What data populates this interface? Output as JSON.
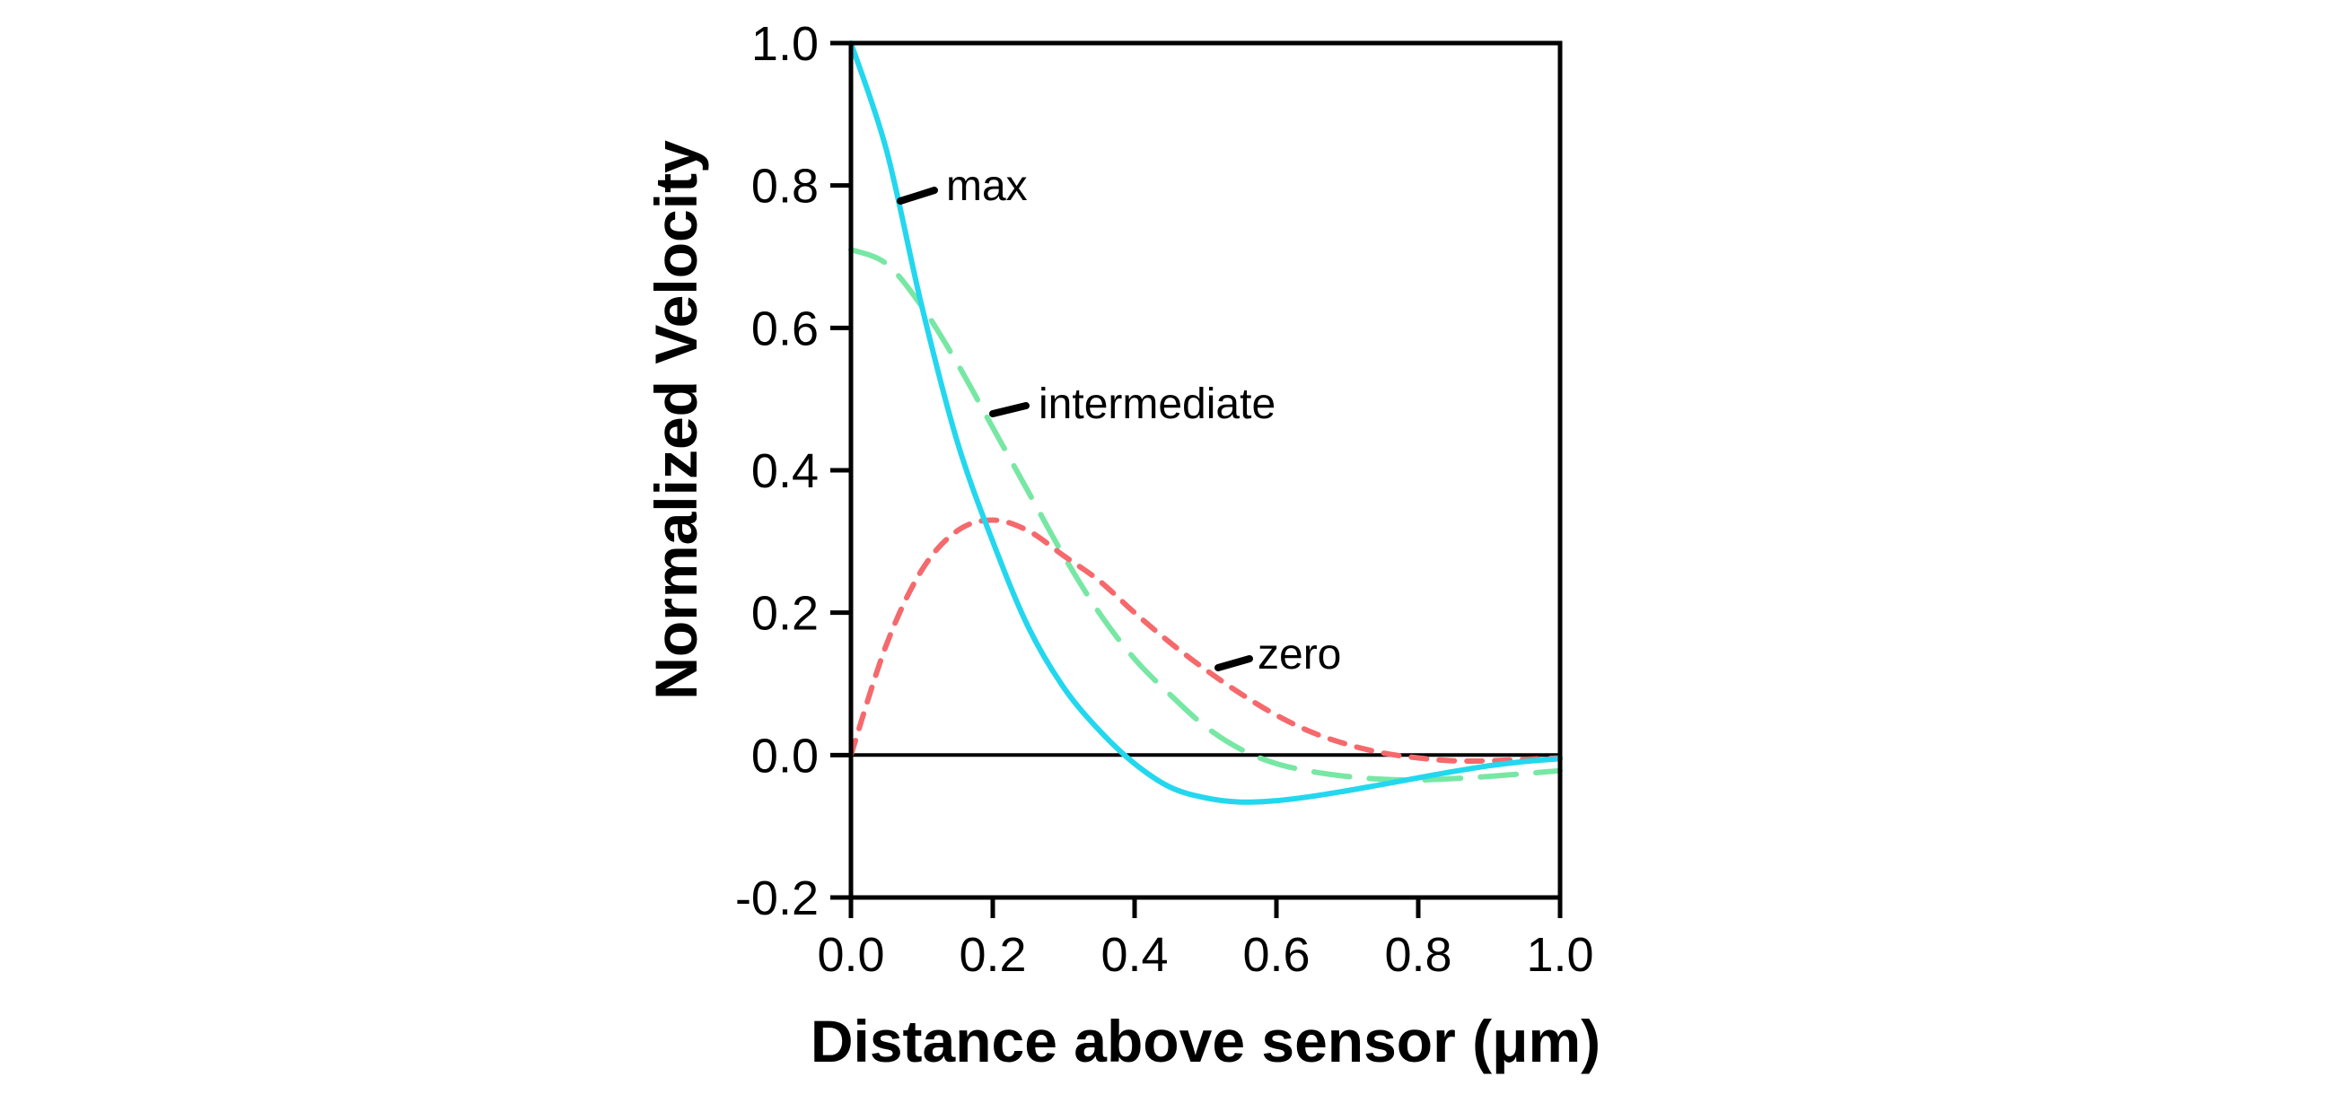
{
  "page": {
    "background": "#FFFFFF"
  },
  "chart_data": {
    "type": "line",
    "title": "",
    "xlabel": "Distance above sensor (μm)",
    "ylabel": "Normalized Velocity",
    "xlim": [
      0.0,
      1.0
    ],
    "ylim": [
      -0.2,
      1.0
    ],
    "grid": false,
    "zero_line": true,
    "legend_position": "inline-annotations",
    "axis_color": "#000000",
    "x_tick_values": [
      0.0,
      0.2,
      0.4,
      0.6,
      0.8,
      1.0
    ],
    "x_tick_labels": [
      "0.0",
      "0.2",
      "0.4",
      "0.6",
      "0.8",
      "1.0"
    ],
    "y_tick_values": [
      1.0,
      0.8,
      0.6,
      0.4,
      0.2,
      0.0,
      -0.2
    ],
    "y_tick_labels": [
      "1.0",
      "0.8",
      "0.6",
      "0.4",
      "0.2",
      "0.0",
      "-0.2"
    ],
    "x": [
      0.0,
      0.05,
      0.1,
      0.15,
      0.2,
      0.25,
      0.3,
      0.35,
      0.4,
      0.45,
      0.5,
      0.55,
      0.6,
      0.65,
      0.7,
      0.75,
      0.8,
      0.85,
      0.9,
      0.95,
      1.0
    ],
    "series": [
      {
        "name": "intermediate",
        "label": "intermediate",
        "color": "#77E7A4",
        "line_style": "long-dash",
        "values": [
          0.71,
          0.69,
          0.63,
          0.55,
          0.46,
          0.37,
          0.28,
          0.2,
          0.135,
          0.085,
          0.04,
          0.008,
          -0.012,
          -0.023,
          -0.03,
          -0.034,
          -0.035,
          -0.033,
          -0.03,
          -0.026,
          -0.022
        ]
      },
      {
        "name": "zero",
        "label": "zero",
        "color": "#F5696C",
        "line_style": "short-dash",
        "values": [
          0.0,
          0.155,
          0.26,
          0.315,
          0.33,
          0.315,
          0.28,
          0.245,
          0.2,
          0.158,
          0.12,
          0.086,
          0.056,
          0.032,
          0.015,
          0.003,
          -0.004,
          -0.008,
          -0.008,
          -0.006,
          -0.004
        ]
      },
      {
        "name": "max",
        "label": "max",
        "color": "#23D7EE",
        "line_style": "solid",
        "values": [
          1.0,
          0.85,
          0.63,
          0.44,
          0.3,
          0.18,
          0.095,
          0.035,
          -0.012,
          -0.045,
          -0.06,
          -0.066,
          -0.064,
          -0.058,
          -0.05,
          -0.041,
          -0.032,
          -0.023,
          -0.015,
          -0.009,
          -0.005
        ]
      }
    ],
    "annotations": [
      {
        "label": "max"
      },
      {
        "label": "intermediate"
      },
      {
        "label": "zero"
      }
    ]
  }
}
